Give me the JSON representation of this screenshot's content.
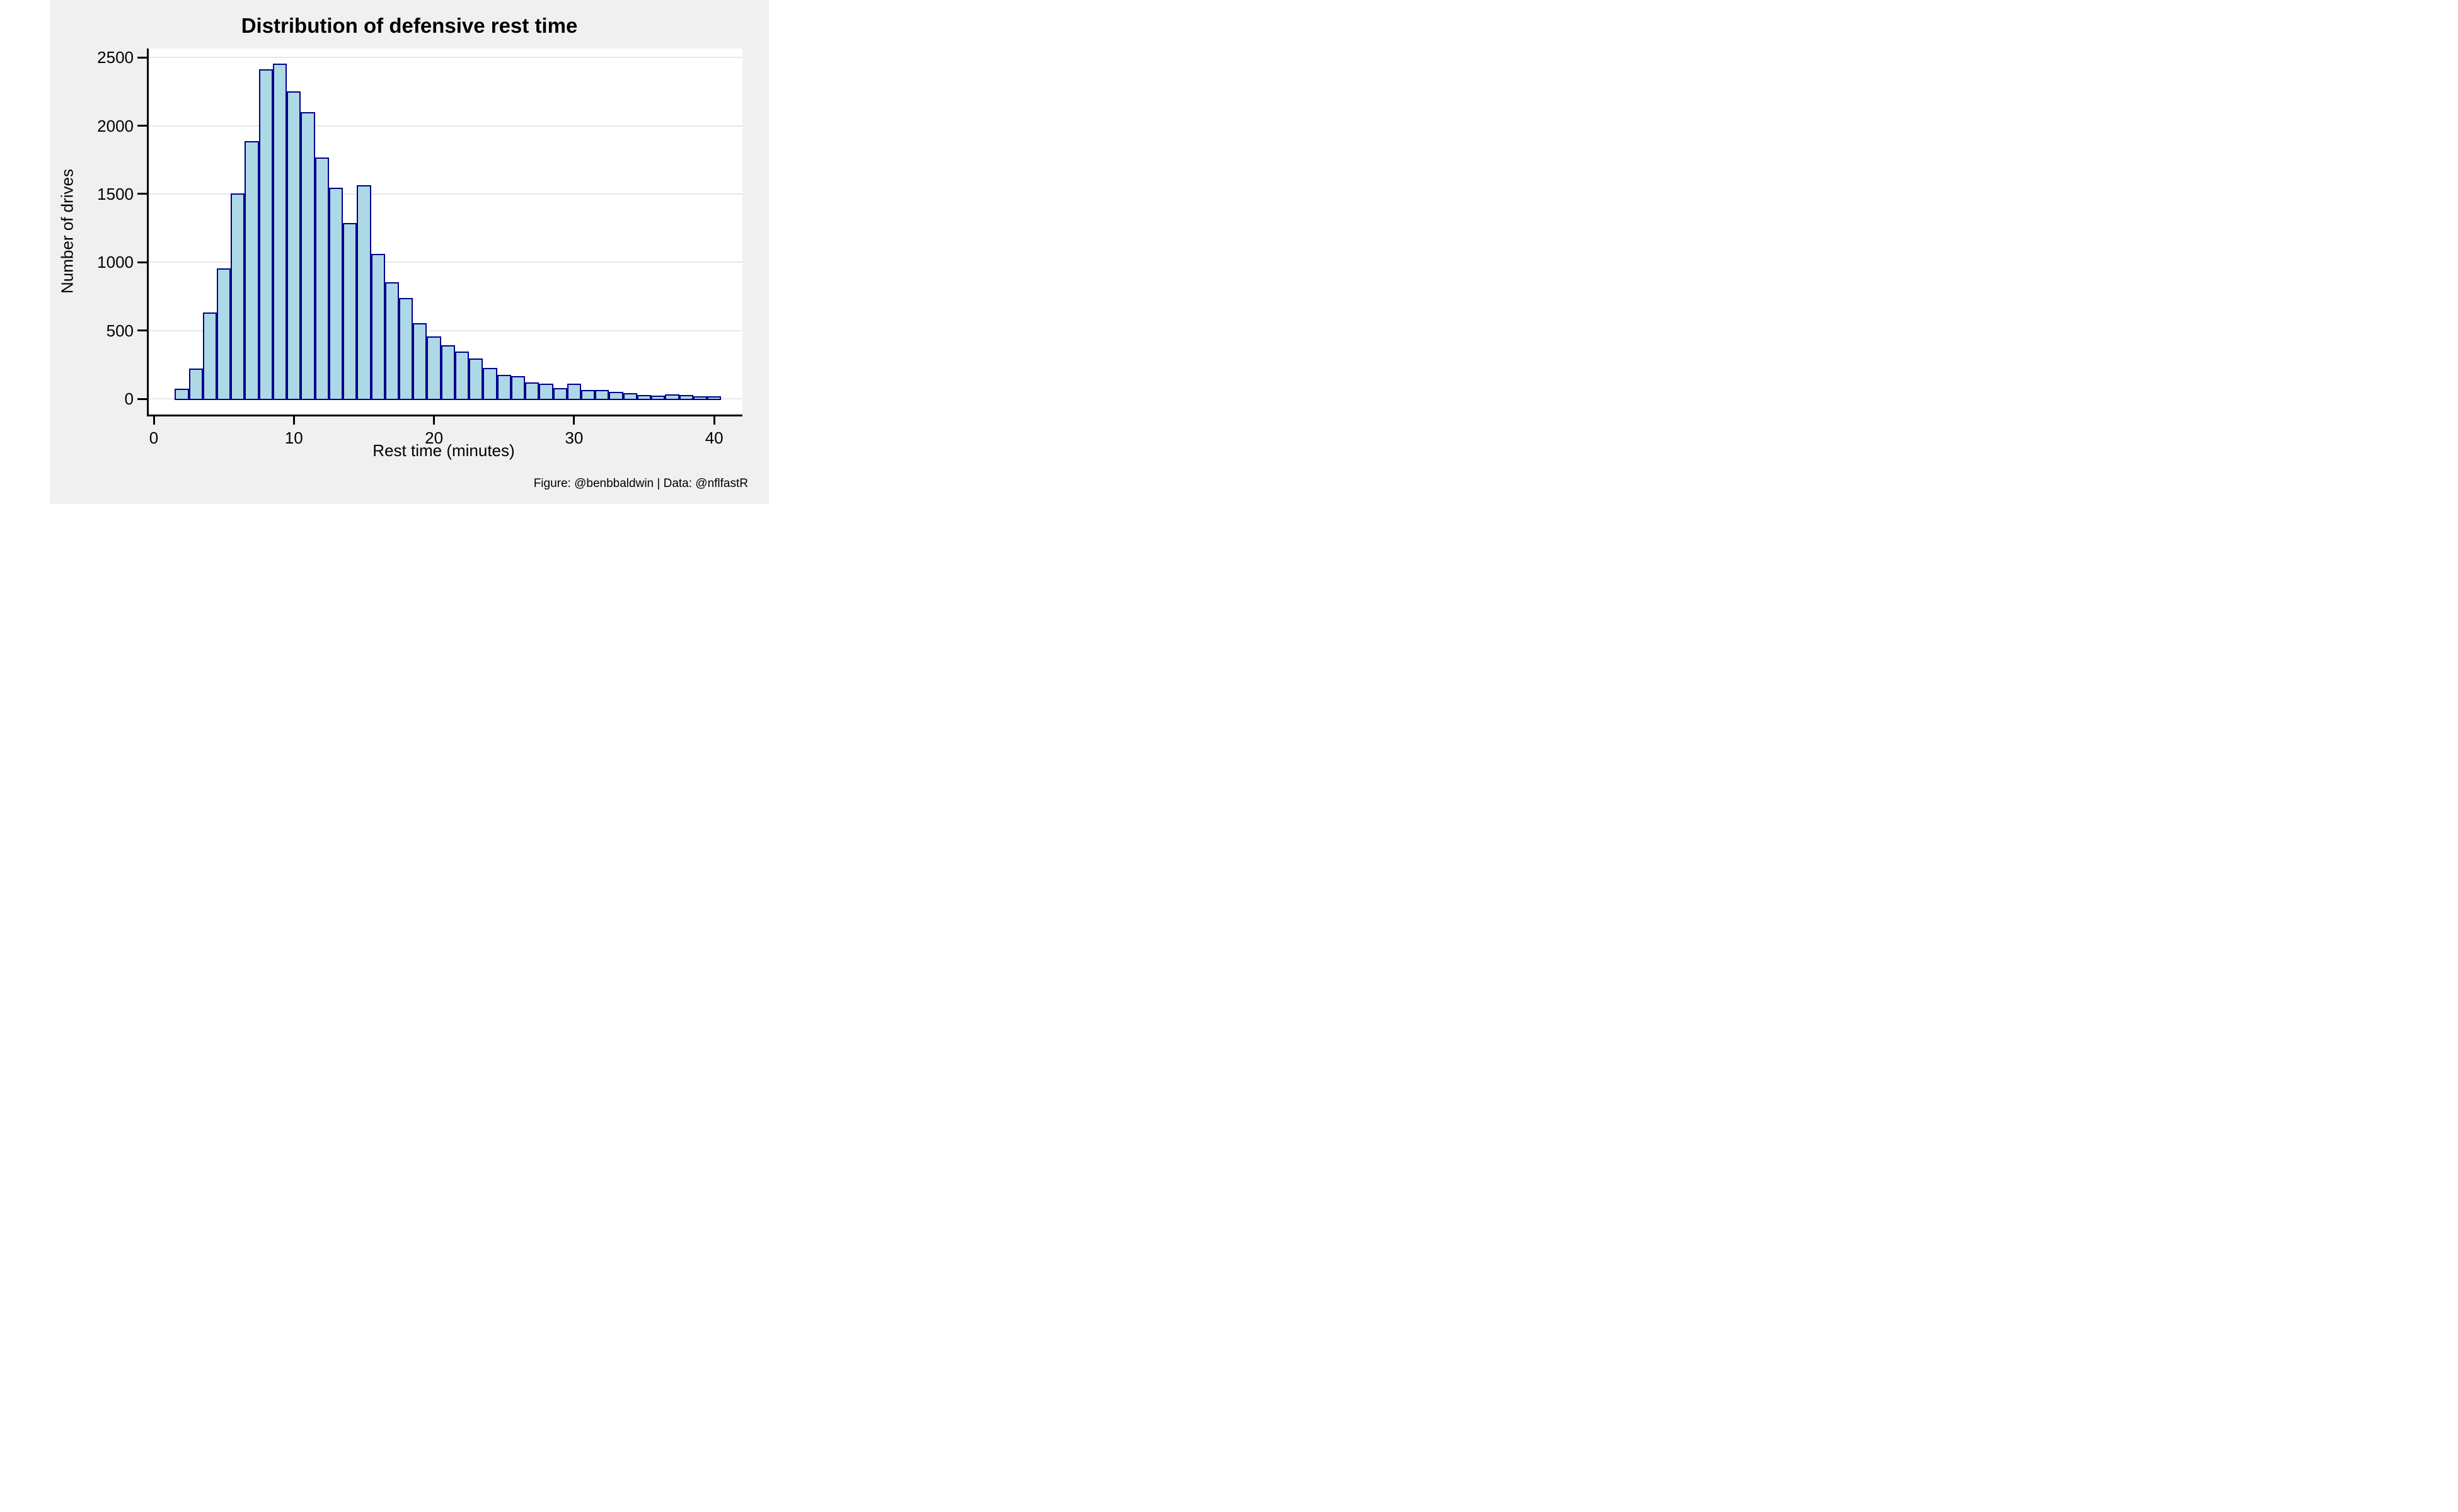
{
  "chart_data": {
    "type": "bar",
    "subtype": "histogram",
    "title": "Distribution of defensive rest time",
    "xlabel": "Rest time (minutes)",
    "ylabel": "Number of drives",
    "caption": "Figure: @benbbaldwin | Data: @nflfastR",
    "bin_width_minutes": 1,
    "bin_centers": [
      2,
      3,
      4,
      5,
      6,
      7,
      8,
      9,
      10,
      11,
      12,
      13,
      14,
      15,
      16,
      17,
      18,
      19,
      20,
      21,
      22,
      23,
      24,
      25,
      26,
      27,
      28,
      29,
      30,
      31,
      32,
      33,
      34,
      35,
      36,
      37,
      38,
      39,
      40
    ],
    "values": [
      60,
      210,
      620,
      945,
      1495,
      1875,
      2400,
      2445,
      2240,
      2090,
      1755,
      1535,
      1275,
      1555,
      1050,
      840,
      725,
      540,
      445,
      380,
      335,
      285,
      215,
      165,
      155,
      110,
      98,
      65,
      100,
      55,
      55,
      40,
      30,
      15,
      12,
      22,
      14,
      9,
      6
    ],
    "xticks": [
      0,
      10,
      20,
      30,
      40
    ],
    "yticks": [
      0,
      500,
      1000,
      1500,
      2000,
      2500
    ],
    "xlim": [
      -0.5,
      41.9
    ],
    "ylim": [
      0,
      2560
    ],
    "grid": "horizontal-only",
    "legend": "none",
    "colors": {
      "bar_fill": "#ADD8E6",
      "bar_stroke": "#00008B",
      "figure_background": "#F0F0F0",
      "panel_background": "#FFFFFF",
      "gridline": "#E8E8E8",
      "axis_line": "#000000",
      "text": "#000000"
    }
  }
}
